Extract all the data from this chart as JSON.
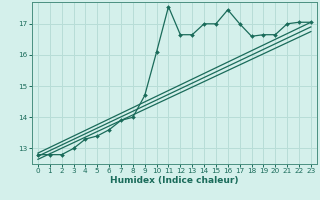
{
  "xlabel": "Humidex (Indice chaleur)",
  "bg_color": "#d4f0eb",
  "grid_color": "#b8ddd7",
  "line_color": "#1a6b5a",
  "spine_color": "#4a9080",
  "xlim": [
    -0.5,
    23.5
  ],
  "ylim": [
    12.5,
    17.7
  ],
  "yticks": [
    13,
    14,
    15,
    16,
    17
  ],
  "xticks": [
    0,
    1,
    2,
    3,
    4,
    5,
    6,
    7,
    8,
    9,
    10,
    11,
    12,
    13,
    14,
    15,
    16,
    17,
    18,
    19,
    20,
    21,
    22,
    23
  ],
  "main_series": [
    [
      0,
      12.8
    ],
    [
      1,
      12.8
    ],
    [
      2,
      12.8
    ],
    [
      3,
      13.0
    ],
    [
      4,
      13.3
    ],
    [
      5,
      13.4
    ],
    [
      6,
      13.6
    ],
    [
      7,
      13.9
    ],
    [
      8,
      14.0
    ],
    [
      9,
      14.7
    ],
    [
      10,
      16.1
    ],
    [
      11,
      17.55
    ],
    [
      12,
      16.65
    ],
    [
      13,
      16.65
    ],
    [
      14,
      17.0
    ],
    [
      15,
      17.0
    ],
    [
      16,
      17.45
    ],
    [
      17,
      17.0
    ],
    [
      18,
      16.6
    ],
    [
      19,
      16.65
    ],
    [
      20,
      16.65
    ],
    [
      21,
      17.0
    ],
    [
      22,
      17.05
    ],
    [
      23,
      17.05
    ]
  ],
  "trend_lines": [
    [
      [
        0,
        12.85
      ],
      [
        23,
        17.05
      ]
    ],
    [
      [
        0,
        12.75
      ],
      [
        23,
        16.9
      ]
    ],
    [
      [
        0,
        12.65
      ],
      [
        23,
        16.75
      ]
    ]
  ]
}
